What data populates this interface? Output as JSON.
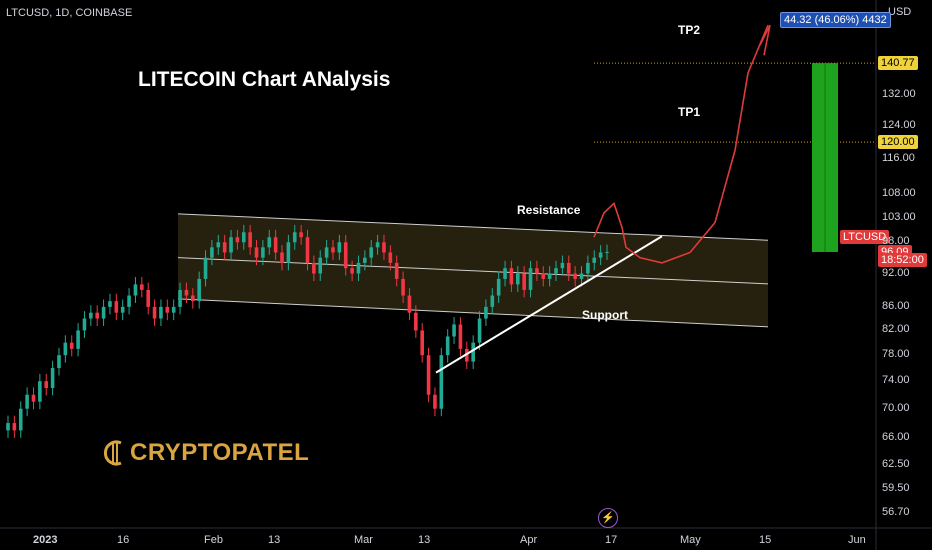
{
  "header": {
    "symbol_line": "LTCUSD, 1D, COINBASE"
  },
  "chart_title": "LITECOIN Chart ANalysis",
  "brand": {
    "name": "CRYPTOPATEL",
    "color": "#d9a441"
  },
  "colors": {
    "up": "#22ab94",
    "down": "#f23645",
    "channel_fill": "#2a2310",
    "curve": "#e03a3a",
    "target_box": "#1ea31e"
  },
  "chart_data": {
    "type": "candlestick",
    "title": "LITECOIN Chart ANalysis",
    "yaxis_unit": "USD",
    "y_scale": "log",
    "ylim": [
      55,
      158
    ],
    "y_ticks": [
      "132.00",
      "124.00",
      "116.00",
      "108.00",
      "103.00",
      "98.00",
      "92.00",
      "86.00",
      "82.00",
      "78.00",
      "74.00",
      "70.00",
      "66.00",
      "62.50",
      "59.50",
      "56.70"
    ],
    "x_ticks": [
      "2023",
      "16",
      "Feb",
      "13",
      "Mar",
      "13",
      "Apr",
      "17",
      "May",
      "15",
      "Jun"
    ],
    "price_tags": [
      {
        "label": "140.77",
        "value": 140.77,
        "style": "yellow"
      },
      {
        "label": "120.00",
        "value": 120.0,
        "style": "yellow"
      },
      {
        "label": "96.09",
        "value": 96.09,
        "style": "red"
      },
      {
        "label": "18:52:00",
        "value": 94.5,
        "style": "red"
      }
    ],
    "last_price_label": "LTCUSD",
    "target_readout": "44.32 (46.06%) 4432",
    "annotations": [
      "Resistance",
      "Support",
      "TP1",
      "TP2"
    ],
    "levels": [
      {
        "name": "TP2",
        "value": 140.77
      },
      {
        "name": "TP1",
        "value": 120.0
      }
    ],
    "closes": [
      68,
      67,
      70,
      72,
      71,
      74,
      73,
      76,
      78,
      80,
      79,
      82,
      84,
      85,
      84,
      86,
      87,
      85,
      86,
      88,
      90,
      89,
      86,
      84,
      86,
      85,
      86,
      89,
      88,
      87,
      91,
      95,
      97,
      98,
      96,
      99,
      98,
      100,
      97,
      95,
      97,
      99,
      96,
      94,
      98,
      100,
      99,
      94,
      92,
      95,
      97,
      96,
      98,
      93,
      92,
      94,
      95,
      97,
      98,
      96,
      94,
      91,
      88,
      85,
      82,
      78,
      72,
      70,
      78,
      81,
      83,
      79,
      77,
      80,
      84,
      86,
      88,
      91,
      93,
      90,
      92,
      89,
      93,
      92,
      91,
      92,
      93,
      94,
      92,
      91,
      92,
      94,
      95,
      96,
      96.09
    ]
  }
}
